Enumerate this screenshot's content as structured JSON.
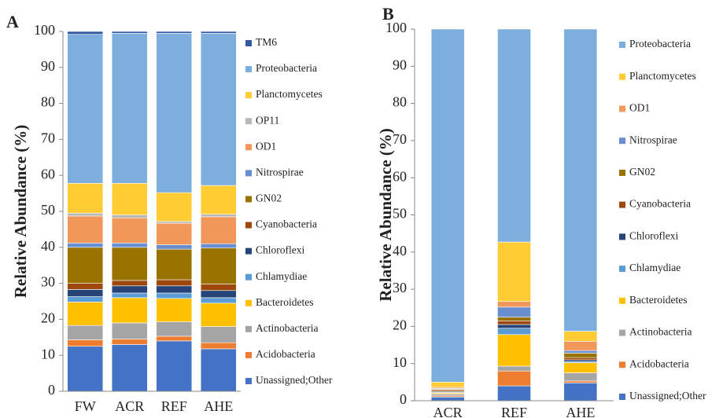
{
  "chart_data": [
    {
      "type": "stacked_bar",
      "panel_label": "A",
      "y_label": "Relative Abundance (%)",
      "categories": [
        "FW",
        "ACR",
        "REF",
        "AHE"
      ],
      "ylim": [
        0,
        100
      ],
      "yticks": [
        0,
        10,
        20,
        30,
        40,
        50,
        60,
        70,
        80,
        90,
        100
      ],
      "grid": false,
      "series": [
        {
          "name": "Unassigned;Other",
          "color": "#4472c4",
          "values": [
            12.5,
            13,
            14,
            11.8
          ]
        },
        {
          "name": "Acidobacteria",
          "color": "#ed7d31",
          "values": [
            1.8,
            1.5,
            1.3,
            1.7
          ]
        },
        {
          "name": "Actinobacteria",
          "color": "#a5a5a5",
          "values": [
            4,
            4.5,
            4,
            4.5
          ]
        },
        {
          "name": "Bacteroidetes",
          "color": "#ffc000",
          "values": [
            6.5,
            7,
            6.5,
            6.5
          ]
        },
        {
          "name": "Chlamydiae",
          "color": "#5b9bd5",
          "values": [
            1.5,
            1.3,
            1.5,
            1.5
          ]
        },
        {
          "name": "Chloroflexi",
          "color": "#264478",
          "values": [
            2,
            2,
            2,
            2
          ]
        },
        {
          "name": "Cyanobacteria",
          "color": "#9e480e",
          "values": [
            1.7,
            1.5,
            1.7,
            1.8
          ]
        },
        {
          "name": "GN02",
          "color": "#997300",
          "values": [
            10,
            9.2,
            8.5,
            10
          ]
        },
        {
          "name": "Nitrospirae",
          "color": "#698ed0",
          "values": [
            1.2,
            1.2,
            1.2,
            1.2
          ]
        },
        {
          "name": "OD1",
          "color": "#f1975a",
          "values": [
            7.5,
            7,
            6,
            7.5
          ]
        },
        {
          "name": "OP11",
          "color": "#b7b7b7",
          "values": [
            0.8,
            0.8,
            0.5,
            0.7
          ]
        },
        {
          "name": "Planctomycetes",
          "color": "#ffcd33",
          "values": [
            8.3,
            8.8,
            8,
            8
          ]
        },
        {
          "name": "Proteobacteria",
          "color": "#7cafdd",
          "values": [
            41.4,
            41.7,
            44.3,
            42.3
          ]
        },
        {
          "name": "TM6",
          "color": "#335aa1",
          "values": [
            0.8,
            0.5,
            0.5,
            0.5
          ]
        }
      ]
    },
    {
      "type": "stacked_bar",
      "panel_label": "B",
      "y_label": "Relative Abundance (%)",
      "categories": [
        "ACR",
        "REF",
        "AHE"
      ],
      "ylim": [
        0,
        100
      ],
      "yticks": [
        0,
        10,
        20,
        30,
        40,
        50,
        60,
        70,
        80,
        90,
        100
      ],
      "grid": false,
      "series": [
        {
          "name": "Unassigned;Other",
          "color": "#4472c4",
          "values": [
            1,
            4,
            4.8
          ]
        },
        {
          "name": "Acidobacteria",
          "color": "#ed7d31",
          "values": [
            0.3,
            4,
            0.5
          ]
        },
        {
          "name": "Actinobacteria",
          "color": "#a5a5a5",
          "values": [
            0.5,
            1.3,
            2.2
          ]
        },
        {
          "name": "Bacteroidetes",
          "color": "#ffc000",
          "values": [
            0.3,
            8.5,
            2.7
          ]
        },
        {
          "name": "Chlamydiae",
          "color": "#5b9bd5",
          "values": [
            0.2,
            1.7,
            0.3
          ]
        },
        {
          "name": "Chloroflexi",
          "color": "#264478",
          "values": [
            0.2,
            1,
            0.5
          ]
        },
        {
          "name": "Cyanobacteria",
          "color": "#9e480e",
          "values": [
            0.3,
            1,
            0.6
          ]
        },
        {
          "name": "GN02",
          "color": "#997300",
          "values": [
            0.3,
            1,
            1.2
          ]
        },
        {
          "name": "Nitrospirae",
          "color": "#698ed0",
          "values": [
            0.2,
            2.7,
            0.7
          ]
        },
        {
          "name": "OD1",
          "color": "#f1975a",
          "values": [
            0.3,
            1.5,
            2.5
          ]
        },
        {
          "name": "Planctomycetes",
          "color": "#ffcd33",
          "values": [
            1.4,
            16,
            2.7
          ]
        },
        {
          "name": "Proteobacteria",
          "color": "#7cafdd",
          "values": [
            95,
            57.3,
            81.3
          ]
        }
      ]
    }
  ]
}
